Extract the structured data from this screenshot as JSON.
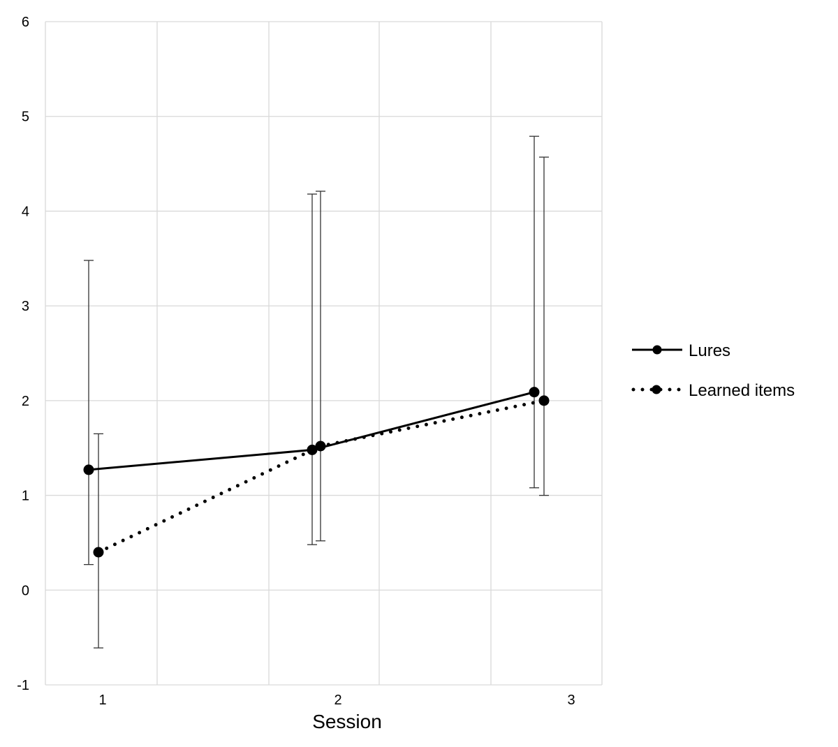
{
  "chart_data": {
    "type": "line",
    "title": "",
    "xlabel": "Session",
    "ylabel": "",
    "categories": [
      "1",
      "2",
      "3"
    ],
    "ylim": [
      -1,
      6
    ],
    "yticks": [
      "-1",
      "0",
      "1",
      "2",
      "3",
      "4",
      "5",
      "6"
    ],
    "grid": true,
    "legend_position": "right",
    "series": [
      {
        "name": "Lures",
        "style": "solid",
        "values": [
          1.27,
          1.48,
          2.09
        ],
        "error_upper": [
          3.48,
          4.18,
          4.79
        ],
        "error_lower": [
          0.27,
          0.48,
          1.08
        ]
      },
      {
        "name": "Learned items",
        "style": "dotted",
        "values": [
          0.4,
          1.52,
          2.0
        ],
        "error_upper": [
          1.65,
          4.21,
          4.57
        ],
        "error_lower": [
          -0.61,
          0.52,
          1.0
        ]
      }
    ],
    "colors": {
      "line": "#000000",
      "grid": "#d9d9d9",
      "errorbar": "#333333"
    }
  }
}
